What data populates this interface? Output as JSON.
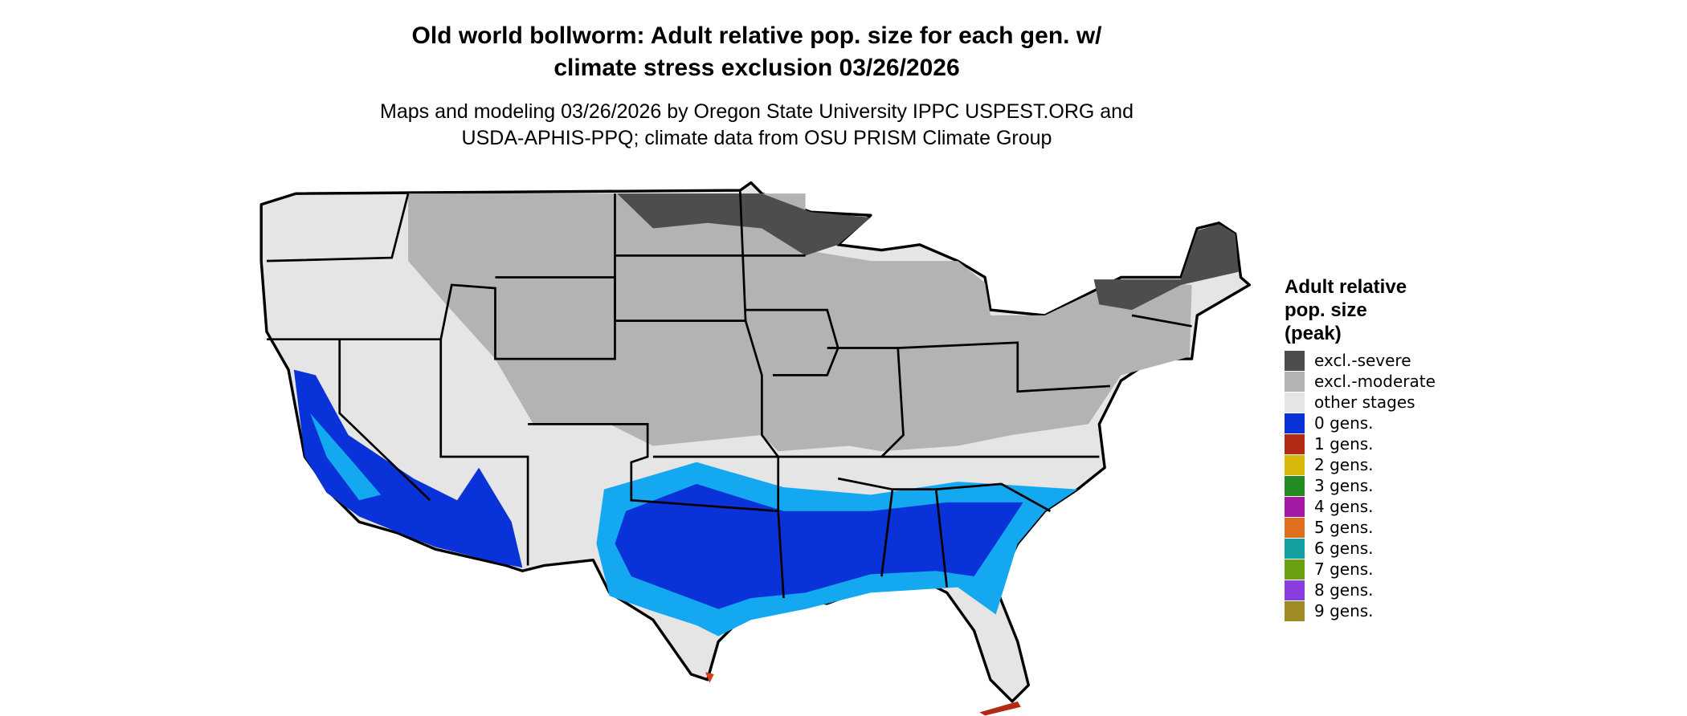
{
  "header": {
    "title": [
      "Old world bollworm: Adult relative pop. size for each gen. w/",
      "climate stress exclusion 03/26/2026"
    ],
    "subtitle": [
      "Maps and modeling 03/26/2026 by Oregon State University IPPC USPEST.ORG and",
      "USDA-APHIS-PPQ; climate data from OSU PRISM Climate Group"
    ]
  },
  "legend": {
    "title": [
      "Adult relative",
      "pop. size",
      "(peak)"
    ],
    "items": [
      {
        "label": "excl.-severe",
        "color": "#4d4d4d"
      },
      {
        "label": "excl.-moderate",
        "color": "#b3b3b3"
      },
      {
        "label": "other stages",
        "color": "#e5e5e5"
      },
      {
        "label": "0 gens.",
        "color": "#0a32d9"
      },
      {
        "label": "1 gens.",
        "color": "#b22a14"
      },
      {
        "label": "2 gens.",
        "color": "#d6b80a"
      },
      {
        "label": "3 gens.",
        "color": "#228b22"
      },
      {
        "label": "4 gens.",
        "color": "#a41aa4"
      },
      {
        "label": "5 gens.",
        "color": "#e0701e"
      },
      {
        "label": "6 gens.",
        "color": "#12a0a0"
      },
      {
        "label": "7 gens.",
        "color": "#6aa012"
      },
      {
        "label": "8 gens.",
        "color": "#8a3ee0"
      },
      {
        "label": "9 gens.",
        "color": "#a08a22"
      }
    ]
  }
}
